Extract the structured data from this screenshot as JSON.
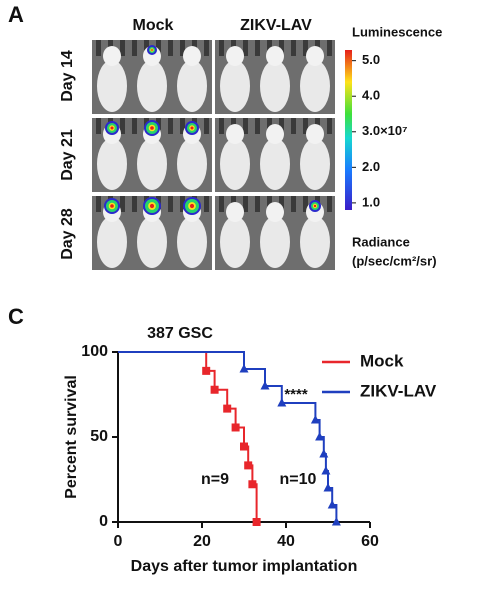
{
  "panel_a": {
    "label": "A",
    "columns": [
      "Mock",
      "ZIKV-LAV"
    ],
    "rows": [
      "Day 14",
      "Day 21",
      "Day 28"
    ],
    "colorbar": {
      "title": "Luminescence",
      "lim": [
        0.8,
        5.3
      ],
      "ticks": [
        {
          "value": 5,
          "label": "5.0"
        },
        {
          "value": 4,
          "label": "4.0"
        },
        {
          "value": 3,
          "label": "3.0×10⁷"
        },
        {
          "value": 2,
          "label": "2.0"
        },
        {
          "value": 1,
          "label": "1.0"
        }
      ],
      "unit_title": "Radiance",
      "unit": "(p/sec/cm²/sr)"
    }
  },
  "panel_c": {
    "label": "C"
  },
  "chart_data": {
    "type": "step",
    "title": "387 GSC",
    "x_label": "Days after tumor implantation",
    "y_label": "Percent survival",
    "xlim": [
      0,
      60
    ],
    "xticks": [
      0,
      20,
      40,
      60
    ],
    "ylim": [
      0,
      100
    ],
    "yticks": [
      0,
      50,
      100
    ],
    "series": [
      {
        "name": "Mock",
        "color": "#e8262b",
        "marker": "square",
        "annotation": "n=9",
        "x": [
          0,
          21,
          23,
          26,
          28,
          30,
          31,
          32,
          33
        ],
        "values": [
          100,
          88.9,
          77.8,
          66.7,
          55.6,
          44.4,
          33.3,
          22.2,
          0
        ]
      },
      {
        "name": "ZIKV-LAV",
        "color": "#1f3fbf",
        "marker": "triangle",
        "annotation": "n=10",
        "x": [
          0,
          30,
          35,
          39,
          47,
          48,
          49,
          49.5,
          50,
          51,
          52
        ],
        "values": [
          100,
          90,
          80,
          70,
          60,
          50,
          40,
          30,
          20,
          10,
          0
        ]
      }
    ],
    "significance": "****"
  }
}
